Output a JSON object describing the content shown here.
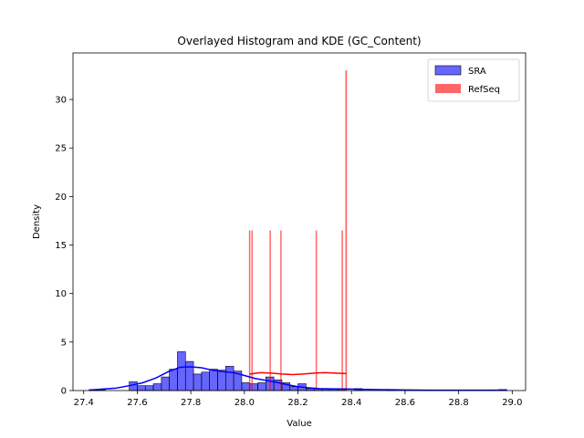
{
  "chart_data": {
    "type": "histogram",
    "title": "Overlayed Histogram and KDE (GC_Content)",
    "xlabel": "Value",
    "ylabel": "Density",
    "xlim": [
      27.36,
      29.05
    ],
    "ylim": [
      0,
      34.8
    ],
    "xticks": [
      "27.4",
      "27.6",
      "27.8",
      "28.0",
      "28.2",
      "28.4",
      "28.6",
      "28.8",
      "29.0"
    ],
    "yticks": [
      "0",
      "5",
      "10",
      "15",
      "20",
      "25",
      "30"
    ],
    "legend": {
      "position": "top-right"
    },
    "series": [
      {
        "name": "SRA",
        "color": "#0000ff",
        "bins": [
          {
            "x0": 27.42,
            "x1": 27.45,
            "y": 0.1
          },
          {
            "x0": 27.45,
            "x1": 27.48,
            "y": 0.1
          },
          {
            "x0": 27.57,
            "x1": 27.6,
            "y": 0.9
          },
          {
            "x0": 27.6,
            "x1": 27.63,
            "y": 0.5
          },
          {
            "x0": 27.63,
            "x1": 27.66,
            "y": 0.5
          },
          {
            "x0": 27.66,
            "x1": 27.69,
            "y": 0.7
          },
          {
            "x0": 27.69,
            "x1": 27.72,
            "y": 1.4
          },
          {
            "x0": 27.72,
            "x1": 27.75,
            "y": 2.2
          },
          {
            "x0": 27.75,
            "x1": 27.78,
            "y": 4.0
          },
          {
            "x0": 27.78,
            "x1": 27.81,
            "y": 3.0
          },
          {
            "x0": 27.81,
            "x1": 27.84,
            "y": 1.7
          },
          {
            "x0": 27.84,
            "x1": 27.87,
            "y": 1.9
          },
          {
            "x0": 27.87,
            "x1": 27.9,
            "y": 2.2
          },
          {
            "x0": 27.9,
            "x1": 27.93,
            "y": 2.1
          },
          {
            "x0": 27.93,
            "x1": 27.96,
            "y": 2.5
          },
          {
            "x0": 27.96,
            "x1": 27.99,
            "y": 2.0
          },
          {
            "x0": 27.99,
            "x1": 28.02,
            "y": 0.8
          },
          {
            "x0": 28.02,
            "x1": 28.05,
            "y": 0.7
          },
          {
            "x0": 28.05,
            "x1": 28.08,
            "y": 0.8
          },
          {
            "x0": 28.08,
            "x1": 28.11,
            "y": 1.4
          },
          {
            "x0": 28.11,
            "x1": 28.14,
            "y": 1.1
          },
          {
            "x0": 28.14,
            "x1": 28.17,
            "y": 0.8
          },
          {
            "x0": 28.17,
            "x1": 28.2,
            "y": 0.4
          },
          {
            "x0": 28.2,
            "x1": 28.23,
            "y": 0.7
          },
          {
            "x0": 28.23,
            "x1": 28.26,
            "y": 0.2
          },
          {
            "x0": 28.26,
            "x1": 28.29,
            "y": 0.2
          },
          {
            "x0": 28.29,
            "x1": 28.32,
            "y": 0.2
          },
          {
            "x0": 28.32,
            "x1": 28.35,
            "y": 0.2
          },
          {
            "x0": 28.35,
            "x1": 28.38,
            "y": 0.2
          },
          {
            "x0": 28.41,
            "x1": 28.44,
            "y": 0.2
          },
          {
            "x0": 28.53,
            "x1": 28.56,
            "y": 0.1
          },
          {
            "x0": 28.95,
            "x1": 28.98,
            "y": 0.1
          }
        ],
        "kde": {
          "x": [
            27.42,
            27.47,
            27.52,
            27.57,
            27.62,
            27.67,
            27.72,
            27.76,
            27.8,
            27.84,
            27.88,
            27.92,
            27.96,
            28.0,
            28.04,
            28.08,
            28.12,
            28.16,
            28.2,
            28.24,
            28.28,
            28.32,
            28.36,
            28.4,
            28.45,
            28.5,
            28.55,
            28.6,
            28.7,
            28.8,
            28.9,
            28.98
          ],
          "y": [
            0.05,
            0.15,
            0.25,
            0.5,
            0.8,
            1.3,
            2.0,
            2.4,
            2.45,
            2.35,
            2.1,
            1.95,
            1.85,
            1.55,
            1.25,
            1.05,
            0.85,
            0.6,
            0.4,
            0.28,
            0.2,
            0.18,
            0.17,
            0.15,
            0.12,
            0.1,
            0.08,
            0.06,
            0.04,
            0.03,
            0.03,
            0.05
          ]
        }
      },
      {
        "name": "RefSeq",
        "color": "#ff0000",
        "bins": [
          {
            "x0": 28.017,
            "x1": 28.022,
            "y": 16.5
          },
          {
            "x0": 28.026,
            "x1": 28.031,
            "y": 16.5
          },
          {
            "x0": 28.094,
            "x1": 28.099,
            "y": 16.5
          },
          {
            "x0": 28.134,
            "x1": 28.139,
            "y": 16.5
          },
          {
            "x0": 28.266,
            "x1": 28.271,
            "y": 16.5
          },
          {
            "x0": 28.363,
            "x1": 28.368,
            "y": 16.5
          },
          {
            "x0": 28.377,
            "x1": 28.383,
            "y": 33.0
          }
        ],
        "kde": {
          "x": [
            28.02,
            28.06,
            28.1,
            28.14,
            28.18,
            28.22,
            28.26,
            28.3,
            28.34,
            28.38
          ],
          "y": [
            1.7,
            1.85,
            1.8,
            1.7,
            1.65,
            1.7,
            1.8,
            1.85,
            1.8,
            1.75
          ]
        }
      }
    ]
  }
}
